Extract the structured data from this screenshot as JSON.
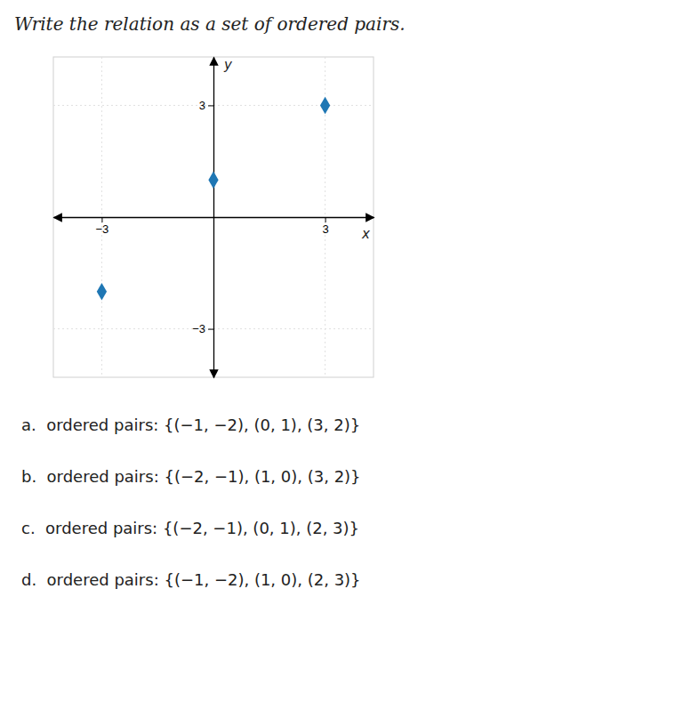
{
  "chart_data": {
    "type": "scatter",
    "title": "Write the relation as a set of ordered pairs.",
    "x_label": "x",
    "y_label": "y",
    "x": [
      -3,
      0,
      3
    ],
    "y": [
      -2,
      1,
      3
    ],
    "marker": "diamond",
    "xlim": [
      -4.3,
      4.3
    ],
    "ylim": [
      -4.3,
      4.3
    ],
    "xticks": [
      {
        "value": -3,
        "label": "−3"
      },
      3
    ],
    "yticks": [
      {
        "value": -3,
        "label": "−3"
      },
      3
    ],
    "grid": true,
    "annotations": [
      "a.  ordered pairs: {(−1, −2), (0, 1), (3, 2)}",
      "b.  ordered pairs: {(−2, −1), (1, 0), (3, 2)}",
      "c.  ordered pairs: {(−2, −1), (0, 1), (2, 3)}",
      "d.  ordered pairs: {(−1, −2), (1, 0), (2, 3)}"
    ]
  }
}
